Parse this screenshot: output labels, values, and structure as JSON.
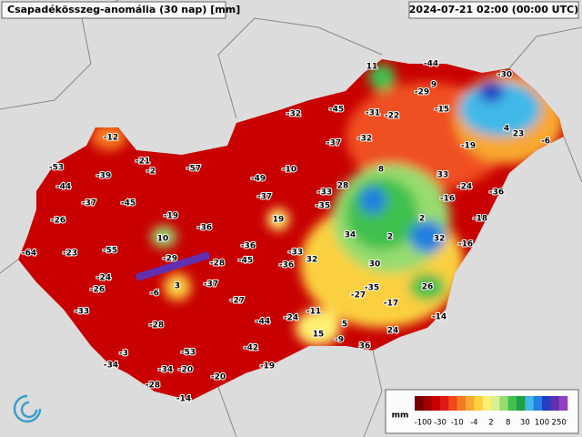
{
  "header": {
    "title": "Csapadékösszeg-anomália (30 nap) [mm]",
    "timestamp": "2024-07-21 02:00 (00:00 UTC)"
  },
  "stations": [
    -53,
    -12,
    -21,
    -2,
    -57,
    -44,
    -39,
    -37,
    -45,
    -26,
    -19,
    -36,
    10,
    -23,
    -55,
    -64,
    -29,
    -24,
    -26,
    -6,
    3,
    -33,
    -28,
    -3,
    -34,
    -53,
    -34,
    -20,
    -28,
    -14,
    -20,
    -32,
    -45,
    -31,
    -22,
    11,
    -44,
    9,
    -29,
    -30,
    -15,
    -37,
    -32,
    -10,
    -49,
    -37,
    -33,
    -35,
    19,
    8,
    28,
    33,
    -19,
    4,
    23,
    -6,
    -24,
    -36,
    -16,
    2,
    -18,
    34,
    2,
    32,
    -16,
    -36,
    -33,
    32,
    -28,
    -45,
    -36,
    30,
    -37,
    -27,
    -35,
    -27,
    -17,
    26,
    -11,
    -24,
    -44,
    5,
    -14,
    15,
    -9,
    24,
    36,
    -42,
    -19
  ],
  "legend": {
    "unit": "mm",
    "ticks": [
      -100,
      -30,
      -10,
      -4,
      2,
      8,
      30,
      100,
      250
    ],
    "colors": [
      "#7a0000",
      "#a00000",
      "#c80000",
      "#e01818",
      "#f04818",
      "#f57a20",
      "#f8a830",
      "#fbd040",
      "#fff070",
      "#d8f090",
      "#98dc70",
      "#40c050",
      "#20a040",
      "#40b8e8",
      "#2080e0",
      "#2040c0",
      "#6030b0",
      "#9040c0"
    ]
  }
}
